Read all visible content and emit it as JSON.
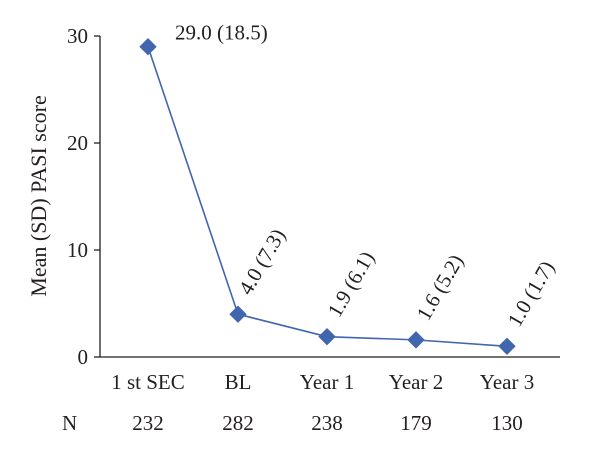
{
  "chart_data": {
    "type": "line",
    "categories": [
      "1 st SEC",
      "BL",
      "Year 1",
      "Year 2",
      "Year 3"
    ],
    "series": [
      {
        "values": [
          29.0,
          4.0,
          1.9,
          1.6,
          1.0
        ],
        "data_labels": [
          "29.0 (18.5)",
          "4.0 (7.3)",
          "1.9 (6.1)",
          "1.6 (5.2)",
          "1.0 (1.7)"
        ],
        "color": "#4166ae",
        "marker": "diamond"
      }
    ],
    "ylabel": "Mean (SD) PASI score",
    "ylim": [
      0,
      30
    ],
    "yticks": [
      0,
      10,
      20,
      30
    ],
    "grid": false,
    "n_row": {
      "label": "N",
      "values": [
        "232",
        "282",
        "238",
        "179",
        "130"
      ]
    }
  }
}
